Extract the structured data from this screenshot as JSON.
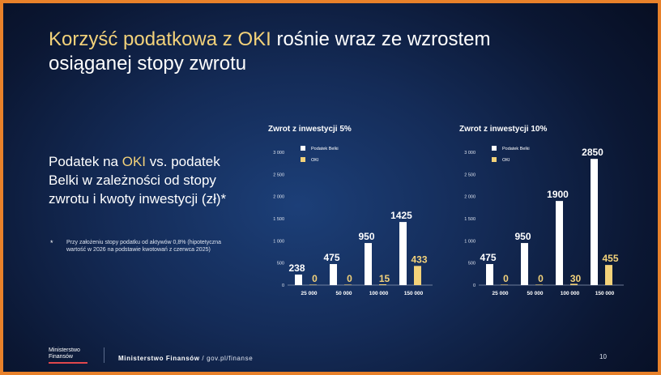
{
  "slide": {
    "title_highlight": "Korzyść podatkowa z OKI",
    "title_rest": " rośnie wraz ze wzrostem osiąganej stopy zwrotu",
    "subtitle_pre": "Podatek na ",
    "subtitle_highlight": "OKI",
    "subtitle_post": " vs. podatek Belki w zależności od stopy zwrotu i kwoty inwestycji (zł)*",
    "footnote_mark": "*",
    "footnote": "Przy założeniu stopy podatku od aktywów 0,8% (hipotetyczna wartość w 2026 na podstawie kwotowań z czerwca 2025)",
    "footer_logo_line1": "Ministerstwo",
    "footer_logo_line2": "Finansów",
    "footer_org": "Ministerstwo Finansów",
    "footer_sep": " / ",
    "footer_url": "gov.pl/finanse",
    "page_number": "10"
  },
  "colors": {
    "belki": "#ffffff",
    "oki": "#f3d27a",
    "accent": "#f3d27a",
    "frame": "#e8812a"
  },
  "chart_data": [
    {
      "type": "bar",
      "title": "Zwrot z inwestycji 5%",
      "categories": [
        "25 000",
        "50 000",
        "100 000",
        "150 000"
      ],
      "series": [
        {
          "name": "Podatek Belki",
          "values": [
            238,
            475,
            950,
            1425
          ]
        },
        {
          "name": "OKI",
          "values": [
            0,
            0,
            15,
            433
          ]
        }
      ],
      "yticks": [
        "0",
        "500",
        "1 000",
        "1 500",
        "2 000",
        "2 500",
        "3 000"
      ],
      "ylim": [
        0,
        3000
      ],
      "legend": "top-left"
    },
    {
      "type": "bar",
      "title": "Zwrot z inwestycji 10%",
      "categories": [
        "25 000",
        "50 000",
        "100 000",
        "150 000"
      ],
      "series": [
        {
          "name": "Podatek Belki",
          "values": [
            475,
            950,
            1900,
            2850
          ]
        },
        {
          "name": "OKI",
          "values": [
            0,
            0,
            30,
            455
          ]
        }
      ],
      "yticks": [
        "0",
        "500",
        "1 000",
        "1 500",
        "2 000",
        "2 500",
        "3 000"
      ],
      "ylim": [
        0,
        3000
      ],
      "legend": "top-left"
    }
  ]
}
